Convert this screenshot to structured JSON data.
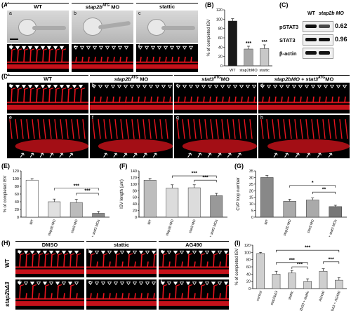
{
  "panel_labels": {
    "A": "(A)",
    "B": "(B)",
    "C": "(C)",
    "D": "(D)",
    "E": "(E)",
    "F": "(F)",
    "G": "(G)",
    "H": "(H)",
    "I": "(I)"
  },
  "panelA": {
    "headers": [
      "WT",
      "stap2b",
      "ATG",
      "MO",
      "stattic"
    ],
    "sublabels": [
      "a",
      "b",
      "c",
      "d",
      "e",
      "f"
    ]
  },
  "panelC": {
    "col_wt": "WT",
    "col_mo": "stap2b MO",
    "rows": [
      {
        "label": "pSTAT3",
        "ratio": "0.62"
      },
      {
        "label": "STAT3",
        "ratio": "0.96"
      },
      {
        "label": "β-actin",
        "ratio": ""
      }
    ]
  },
  "panelD": {
    "headers": [
      "WT",
      "stap2b",
      "ATG",
      "MO",
      "stat3",
      "ATG",
      "MO",
      "stap2bMO + stat3",
      "ATG",
      "MO"
    ],
    "sublabels": [
      "a",
      "b",
      "c",
      "d",
      "e",
      "f",
      "g",
      "h"
    ]
  },
  "panelH": {
    "headers": [
      "DMSO",
      "stattic",
      "AG490"
    ],
    "row_labels": [
      "WT",
      "stap2bΔ3"
    ],
    "sublabels": [
      "a",
      "b",
      "c",
      "d",
      "e",
      "f"
    ]
  },
  "colors": {
    "dark_bar": "#1a1a1a",
    "grey_bar": "#c8c8c8",
    "mid_bar": "#a8a8a8",
    "vessel_red": "#e8141e"
  },
  "chart_data": [
    {
      "id": "B",
      "type": "bar",
      "ylabel": "% of completed ISV",
      "categories": [
        "WT",
        "stap2bMO",
        "stattic"
      ],
      "values": [
        96,
        36,
        37
      ],
      "errors": [
        5,
        6,
        8
      ],
      "ylim": [
        0,
        120
      ],
      "yticks": [
        0,
        20,
        40,
        60,
        80,
        100,
        120
      ],
      "significance": [
        "",
        "***",
        "***"
      ]
    },
    {
      "id": "E",
      "type": "bar",
      "ylabel": "% of completed ISV",
      "categories": [
        "WT",
        "stap2b MO",
        "stat3 MO",
        "stap2b+ stat3 MOs"
      ],
      "values": [
        96,
        40,
        38,
        10
      ],
      "errors": [
        4,
        7,
        8,
        5
      ],
      "ylim": [
        0,
        120
      ],
      "yticks": [
        0,
        20,
        40,
        60,
        80,
        100,
        120
      ],
      "brackets": [
        {
          "label": "***"
        },
        {
          "label": "***"
        }
      ]
    },
    {
      "id": "F",
      "type": "bar",
      "ylabel": "ISV length (µm)",
      "categories": [
        "WT",
        "stap2b MO",
        "stat3 MO",
        "stap2b+ stat3 MOs"
      ],
      "values": [
        112,
        88,
        89,
        65
      ],
      "errors": [
        5,
        10,
        9,
        7
      ],
      "ylim": [
        0,
        140
      ],
      "yticks": [
        0,
        20,
        40,
        60,
        80,
        100,
        120,
        140
      ],
      "brackets": [
        {
          "label": "***"
        },
        {
          "label": "***"
        }
      ]
    },
    {
      "id": "G",
      "type": "bar",
      "ylabel": "CVP loop number",
      "categories": [
        "WT",
        "stap2b MO",
        "stat3 MO",
        "stap2b+ stat3 MOs"
      ],
      "values": [
        30,
        12,
        13,
        8
      ],
      "errors": [
        1.5,
        1.5,
        1.5,
        1
      ],
      "ylim": [
        0,
        35
      ],
      "yticks": [
        0,
        5,
        10,
        15,
        20,
        25,
        30,
        35
      ],
      "brackets": [
        {
          "label": "*"
        },
        {
          "label": "**"
        }
      ]
    },
    {
      "id": "I",
      "type": "bar",
      "ylabel": "% of completed ISV",
      "categories": [
        "control",
        "stap2bΔ3",
        "stattic",
        "stap2bΔ3 + stattic",
        "AG490",
        "stap2bΔ3 + AG490"
      ],
      "values": [
        97,
        40,
        43,
        20,
        48,
        23
      ],
      "errors": [
        3,
        8,
        7,
        7,
        7,
        7
      ],
      "ylim": [
        0,
        120
      ],
      "yticks": [
        0,
        20,
        40,
        60,
        80,
        100,
        120
      ],
      "brackets": [
        {
          "label": "***"
        },
        {
          "label": "***"
        },
        {
          "label": "***"
        },
        {
          "label": "***"
        }
      ]
    }
  ]
}
